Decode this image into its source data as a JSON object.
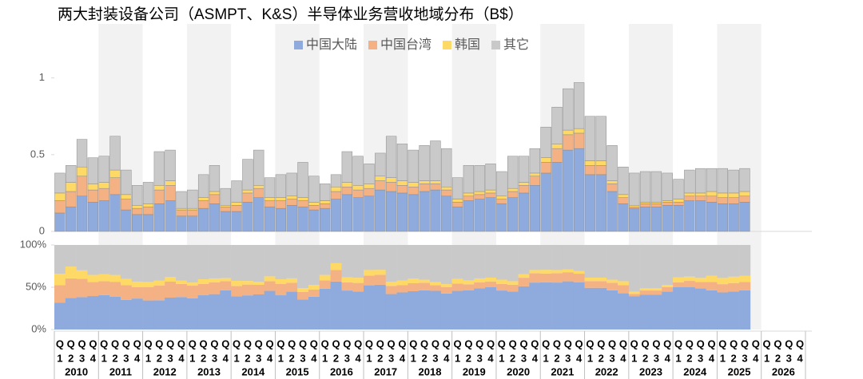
{
  "chart_data": {
    "type": "bar",
    "title": "两大封装设备公司（ASMPT、K&S）半导体业务营收地域分布（B$）",
    "years": [
      "2010",
      "2011",
      "2012",
      "2013",
      "2014",
      "2015",
      "2016",
      "2017",
      "2018",
      "2019",
      "2020",
      "2021",
      "2022",
      "2023",
      "2024",
      "2025",
      "2026"
    ],
    "quarter_prefix": "Q",
    "quarters": [
      "1",
      "2",
      "3",
      "4"
    ],
    "ylim": [
      0,
      1.3
    ],
    "yticks": [
      0,
      0.5,
      1
    ],
    "y2lim": [
      0,
      1
    ],
    "y2ticks": [
      {
        "value": 0,
        "label": "0%"
      },
      {
        "value": 0.5,
        "label": "50%"
      },
      {
        "value": 1,
        "label": "100%"
      }
    ],
    "series": [
      {
        "name": "中国大陆",
        "color": "#8faadc",
        "values": [
          0.12,
          0.16,
          0.23,
          0.19,
          0.2,
          0.24,
          0.14,
          0.11,
          0.11,
          0.18,
          0.2,
          0.1,
          0.1,
          0.15,
          0.18,
          0.13,
          0.13,
          0.19,
          0.22,
          0.16,
          0.15,
          0.17,
          0.16,
          0.14,
          0.15,
          0.21,
          0.24,
          0.22,
          0.23,
          0.27,
          0.26,
          0.25,
          0.24,
          0.26,
          0.27,
          0.23,
          0.16,
          0.2,
          0.21,
          0.22,
          0.18,
          0.22,
          0.25,
          0.3,
          0.38,
          0.45,
          0.53,
          0.54,
          0.37,
          0.37,
          0.26,
          0.18,
          0.15,
          0.16,
          0.16,
          0.17,
          0.17,
          0.2,
          0.2,
          0.19,
          0.18,
          0.18,
          0.19,
          null,
          null,
          null,
          null,
          null
        ]
      },
      {
        "name": "中国台湾",
        "color": "#f4b183",
        "values": [
          0.08,
          0.1,
          0.13,
          0.08,
          0.08,
          0.11,
          0.07,
          0.04,
          0.05,
          0.09,
          0.1,
          0.04,
          0.04,
          0.05,
          0.06,
          0.03,
          0.04,
          0.06,
          0.06,
          0.04,
          0.05,
          0.04,
          0.04,
          0.03,
          0.03,
          0.05,
          0.05,
          0.05,
          0.05,
          0.06,
          0.06,
          0.05,
          0.05,
          0.05,
          0.04,
          0.04,
          0.03,
          0.03,
          0.03,
          0.03,
          0.03,
          0.04,
          0.05,
          0.06,
          0.07,
          0.09,
          0.1,
          0.1,
          0.06,
          0.06,
          0.05,
          0.04,
          0.01,
          0.02,
          0.02,
          0.02,
          0.02,
          0.03,
          0.03,
          0.04,
          0.04,
          0.04,
          0.04,
          null,
          null,
          null,
          null,
          null
        ]
      },
      {
        "name": "韩国",
        "color": "#ffd966",
        "values": [
          0.05,
          0.06,
          0.06,
          0.04,
          0.04,
          0.05,
          0.03,
          0.02,
          0.02,
          0.03,
          0.03,
          0.01,
          0.01,
          0.02,
          0.02,
          0.01,
          0.02,
          0.02,
          0.02,
          0.02,
          0.02,
          0.02,
          0.02,
          0.02,
          0.02,
          0.03,
          0.03,
          0.03,
          0.03,
          0.03,
          0.03,
          0.03,
          0.03,
          0.02,
          0.02,
          0.02,
          0.02,
          0.02,
          0.02,
          0.02,
          0.02,
          0.02,
          0.02,
          0.02,
          0.03,
          0.03,
          0.03,
          0.03,
          0.03,
          0.03,
          0.02,
          0.02,
          0.01,
          0.01,
          0.01,
          0.01,
          0.02,
          0.02,
          0.02,
          0.03,
          0.03,
          0.03,
          0.03,
          null,
          null,
          null,
          null,
          null
        ]
      },
      {
        "name": "其它",
        "color": "#c9c9c9",
        "values": [
          0.13,
          0.11,
          0.18,
          0.17,
          0.17,
          0.22,
          0.16,
          0.13,
          0.14,
          0.22,
          0.2,
          0.11,
          0.12,
          0.15,
          0.17,
          0.11,
          0.14,
          0.2,
          0.23,
          0.13,
          0.15,
          0.15,
          0.23,
          0.17,
          0.11,
          0.08,
          0.2,
          0.19,
          0.13,
          0.15,
          0.27,
          0.24,
          0.21,
          0.23,
          0.26,
          0.25,
          0.14,
          0.18,
          0.17,
          0.17,
          0.16,
          0.21,
          0.17,
          0.16,
          0.2,
          0.24,
          0.27,
          0.3,
          0.29,
          0.29,
          0.23,
          0.18,
          0.21,
          0.2,
          0.2,
          0.18,
          0.13,
          0.15,
          0.16,
          0.15,
          0.16,
          0.15,
          0.15,
          null,
          null,
          null,
          null,
          null
        ]
      }
    ]
  }
}
